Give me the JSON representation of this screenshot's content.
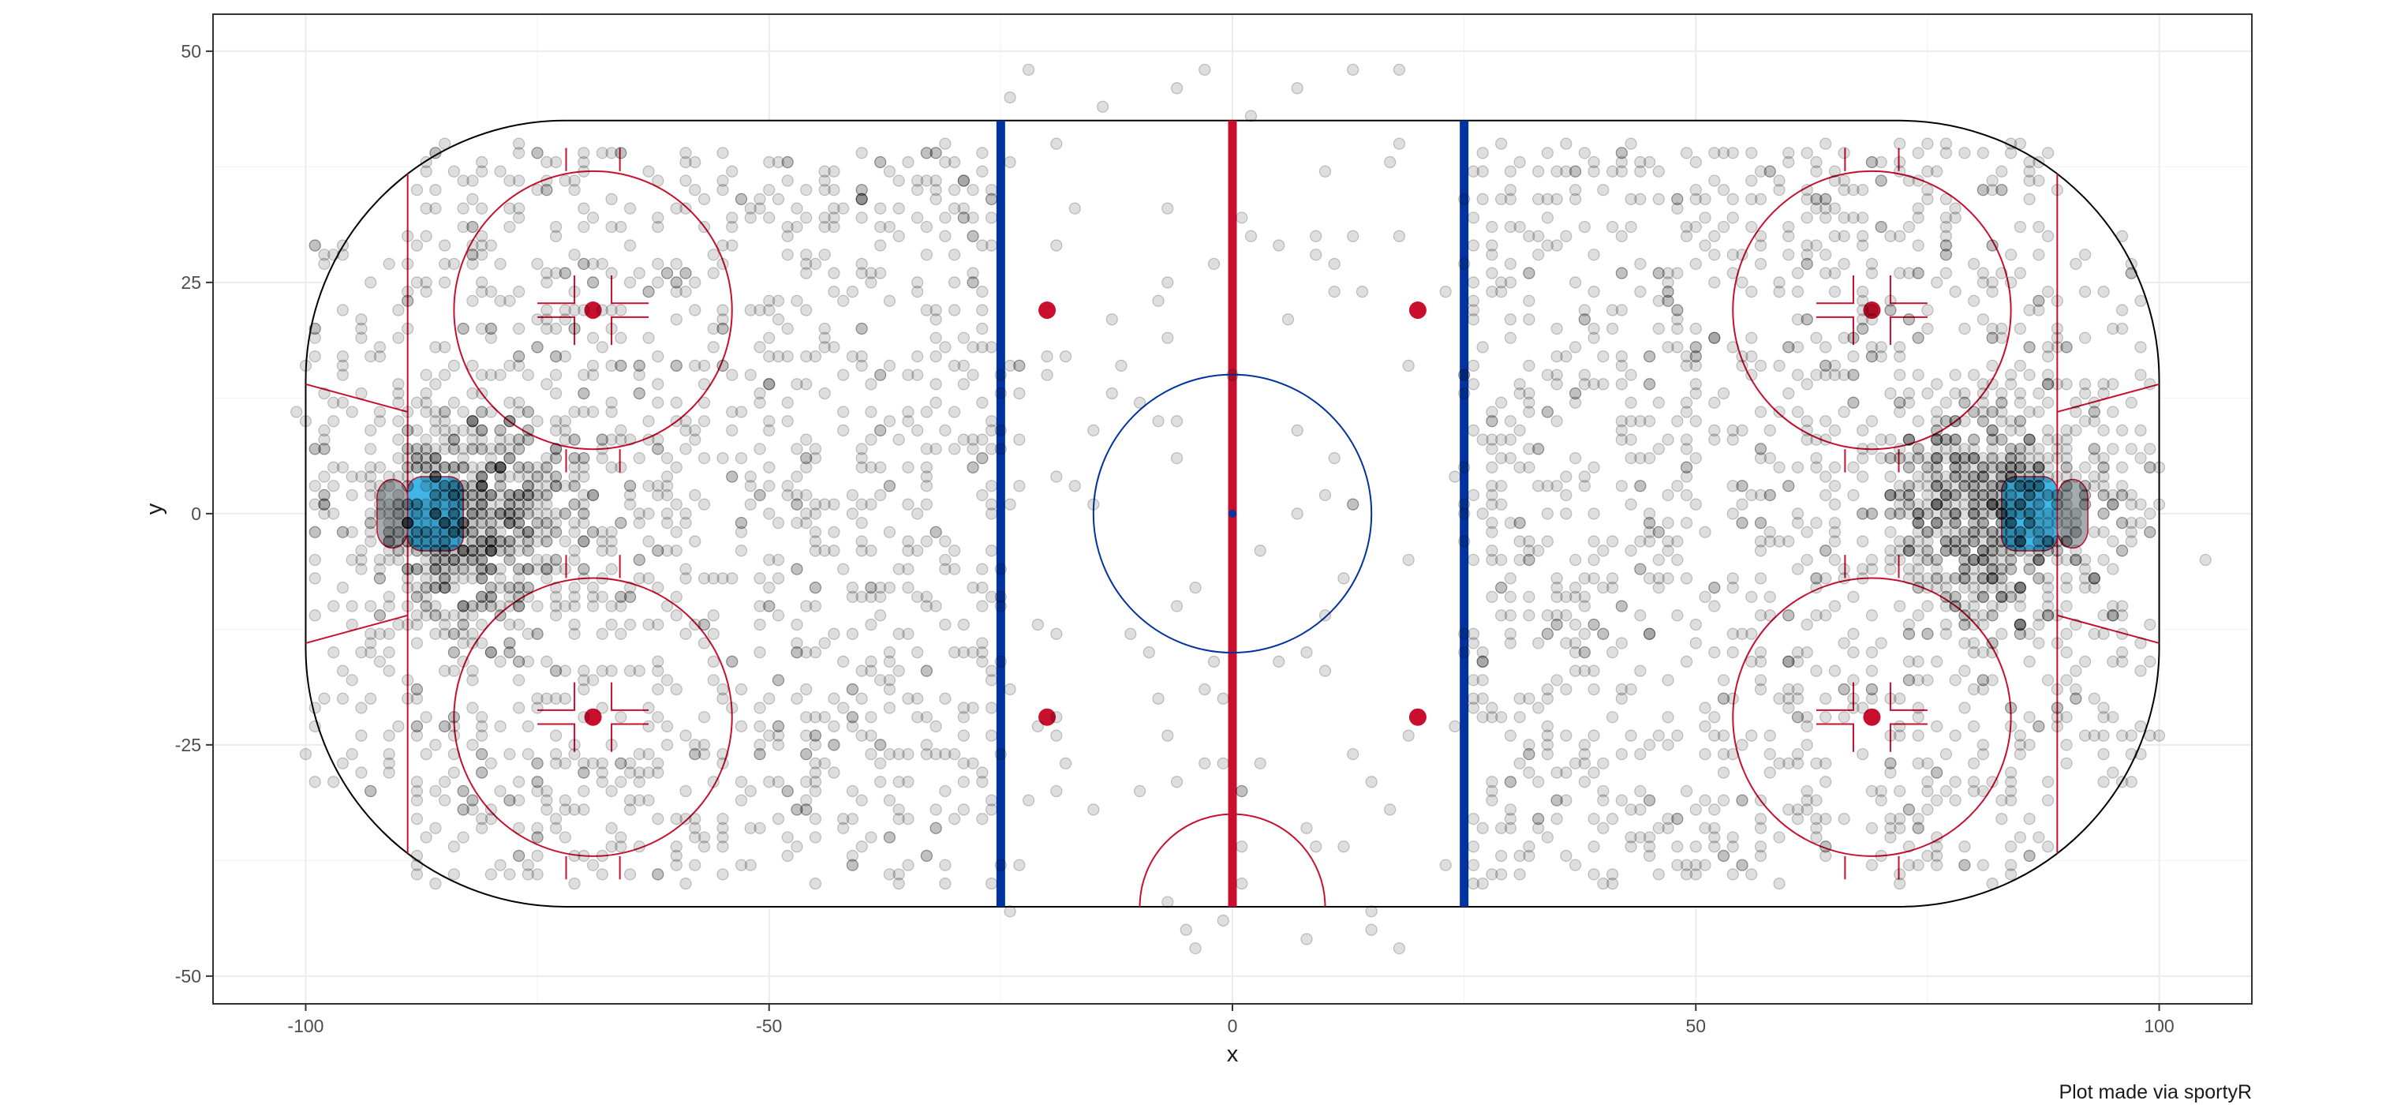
{
  "chart_data": {
    "type": "scatter",
    "title": "",
    "xlabel": "x",
    "ylabel": "y",
    "caption": "Plot made via sportyR",
    "xlim": [
      -110,
      110
    ],
    "ylim": [
      -53,
      54
    ],
    "x_ticks": [
      -100,
      -50,
      0,
      50,
      100
    ],
    "x_tick_labels": [
      "-100",
      "-50",
      "0",
      "50",
      "100"
    ],
    "y_ticks": [
      50,
      25,
      0,
      -25,
      -50
    ],
    "y_tick_labels": [
      "50",
      "25",
      "0",
      "-25",
      "-50"
    ],
    "grid": true,
    "legend": "none",
    "point_color": "#000000",
    "point_opacity": 0.13,
    "point_style": "semi-transparent grey circles with outline",
    "background": "NHL hockey rink diagram (sportyR)",
    "colors": {
      "boards": "#000000",
      "center_line": "#c8102e",
      "blue_lines": "#0033a0",
      "faceoff_circles": "#c8102e",
      "center_circle": "#0033a0",
      "goal_crease": "#41b6e6",
      "goal_net": "#a5acaf",
      "panel_border": "#333333",
      "grid": "#ebebeb"
    },
    "rink": {
      "x_range": [
        -100,
        100
      ],
      "y_range": [
        -42.5,
        42.5
      ],
      "corner_radius": 28,
      "blue_lines_x": [
        -25,
        25
      ],
      "center_line_x": 0,
      "goal_lines_x": [
        -89,
        89
      ],
      "center_circle_radius": 15,
      "end_zone_faceoff_circles": [
        [
          -69,
          22
        ],
        [
          -69,
          -22
        ],
        [
          69,
          22
        ],
        [
          69,
          -22
        ]
      ],
      "faceoff_circle_radius": 15,
      "neutral_zone_faceoff_dots": [
        [
          -20,
          22
        ],
        [
          -20,
          -22
        ],
        [
          20,
          22
        ],
        [
          20,
          -22
        ]
      ],
      "referee_crease_radius": 10
    },
    "series": [
      {
        "values_note": "shot locations concentrated in both offensive zones",
        "clusters": [
          {
            "x_range": [
              -89,
              -25
            ],
            "y_range": [
              -40,
              40
            ],
            "density": "high",
            "hotspot": [
              -82,
              0
            ]
          },
          {
            "x_range": [
              25,
              89
            ],
            "y_range": [
              -40,
              40
            ],
            "density": "high",
            "hotspot": [
              82,
              0
            ]
          },
          {
            "x_range": [
              -25,
              25
            ],
            "y_range": [
              -48,
              49
            ],
            "density": "low"
          },
          {
            "x_range": [
              -100,
              -89
            ],
            "y_range": [
              -30,
              30
            ],
            "density": "low"
          },
          {
            "x_range": [
              89,
              100
            ],
            "y_range": [
              -30,
              30
            ],
            "density": "low"
          }
        ]
      }
    ]
  }
}
